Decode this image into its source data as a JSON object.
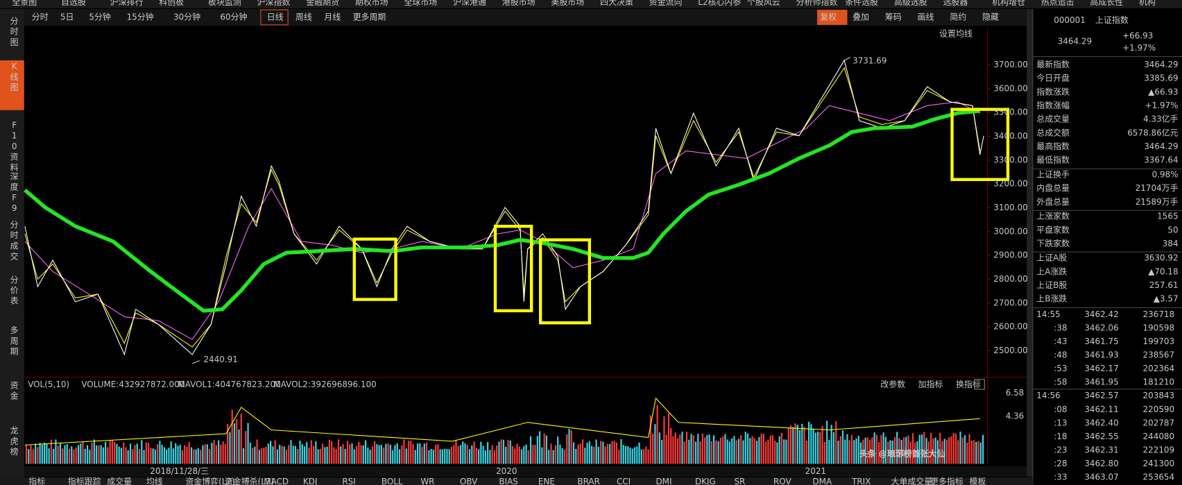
{
  "menu": [
    "全景图",
    "自选股",
    "沪深排行",
    "科创板",
    "板块监测",
    "沪深指数",
    "金融期货",
    "期权市场",
    "全球市场",
    "沪深港通",
    "港股市场",
    "美股市场",
    "四大决策",
    "资金流向",
    "L2核心内参",
    "个股风云",
    "分析师指数",
    "条件选股",
    "高级选股",
    "选股器",
    "机构增仓",
    "热点追击",
    "高成长性",
    "机构"
  ],
  "periods": [
    "分时",
    "5日",
    "5分钟",
    "15分钟",
    "30分钟",
    "60分钟",
    "日线",
    "周线",
    "月线",
    "更多周期"
  ],
  "tools": [
    "复权",
    "叠加",
    "筹码",
    "画线",
    "简约",
    "隐藏"
  ],
  "sidebar": [
    "分时图",
    "K线图",
    "F10资料",
    "深度F9",
    "分时成交",
    "分价表",
    "多周期",
    "资金",
    "龙虎榜"
  ],
  "chart": {
    "settings": "设置均线",
    "ylabels": [
      "3700.00",
      "3600.00",
      "3500.00",
      "3400.00",
      "3300.00",
      "3200.00",
      "3100.00",
      "3000.00",
      "2900.00",
      "2800.00",
      "2700.00",
      "2600.00",
      "2500.00"
    ],
    "high_note": "3731.69",
    "low_note": "2440.91"
  },
  "volume": {
    "title": "VOL(5,10)",
    "volume": "VOLUME:432927872.000",
    "mavol1": "MAVOL1:404767823.200",
    "mavol2": "MAVOL2:392696896.100",
    "buttons": [
      "改参数",
      "加指标",
      "换指标"
    ],
    "ylabels": [
      "6.58",
      "4.36"
    ]
  },
  "xaxis": [
    "2018/11/28/三",
    "2020",
    "2021"
  ],
  "quote": {
    "code": "000001",
    "name": "上证指数",
    "price": "3464.29",
    "change": "+66.93",
    "pct": "+1.97%",
    "rows": [
      [
        "最新指数",
        "3464.29"
      ],
      [
        "今日开盘",
        "3385.69"
      ],
      [
        "指数涨跌",
        "▲66.93"
      ],
      [
        "指数涨幅",
        "+1.97%"
      ],
      [
        "总成交量",
        "4.33亿手"
      ],
      [
        "总成交额",
        "6578.86亿元"
      ],
      [
        "最高指数",
        "3464.29"
      ],
      [
        "最低指数",
        "3367.64"
      ],
      [
        "上证换手",
        "0.98%"
      ],
      [
        "内盘总量",
        "21704万手"
      ],
      [
        "外盘总量",
        "21589万手"
      ],
      [
        "上涨家数",
        "1565"
      ],
      [
        "平盘家数",
        "50"
      ],
      [
        "下跌家数",
        "384"
      ],
      [
        "上证A股",
        "3630.92"
      ],
      [
        "上A涨跌",
        "▲70.18"
      ],
      [
        "上证B股",
        "257.61"
      ],
      [
        "上B涨跌",
        "▲3.57"
      ]
    ]
  },
  "trades": [
    [
      "14:55",
      "3462.42",
      "236718"
    ],
    [
      ":38",
      "3462.06",
      "190598"
    ],
    [
      ":43",
      "3461.75",
      "199703"
    ],
    [
      ":48",
      "3461.93",
      "238567"
    ],
    [
      ":53",
      "3462.17",
      "202364"
    ],
    [
      ":58",
      "3461.95",
      "181210"
    ],
    [
      "14:56",
      "3462.57",
      "203843"
    ],
    [
      ":08",
      "3462.11",
      "220590"
    ],
    [
      ":13",
      "3462.40",
      "202787"
    ],
    [
      ":18",
      "3462.55",
      "244080"
    ],
    [
      ":23",
      "3462.31",
      "222109"
    ],
    [
      ":28",
      "3462.80",
      "241300"
    ],
    [
      ":33",
      "3463.07",
      "253654"
    ]
  ],
  "watermark": "头条 @琅琊榜首张大仙",
  "bottom_tabs": [
    "指标",
    "指标跟踪",
    "成交量",
    "均线",
    "资金博弈(L2)",
    "资金搏杀(L2)",
    "MACD",
    "KDJ",
    "RSI",
    "BOLL",
    "WR",
    "OBV",
    "BIAS",
    "ENE",
    "BRAR",
    "CCI",
    "DMI",
    "DKJG",
    "SR",
    "ROV",
    "DMA",
    "TRIX",
    "大单成交量",
    "更多指标",
    "模板"
  ]
}
